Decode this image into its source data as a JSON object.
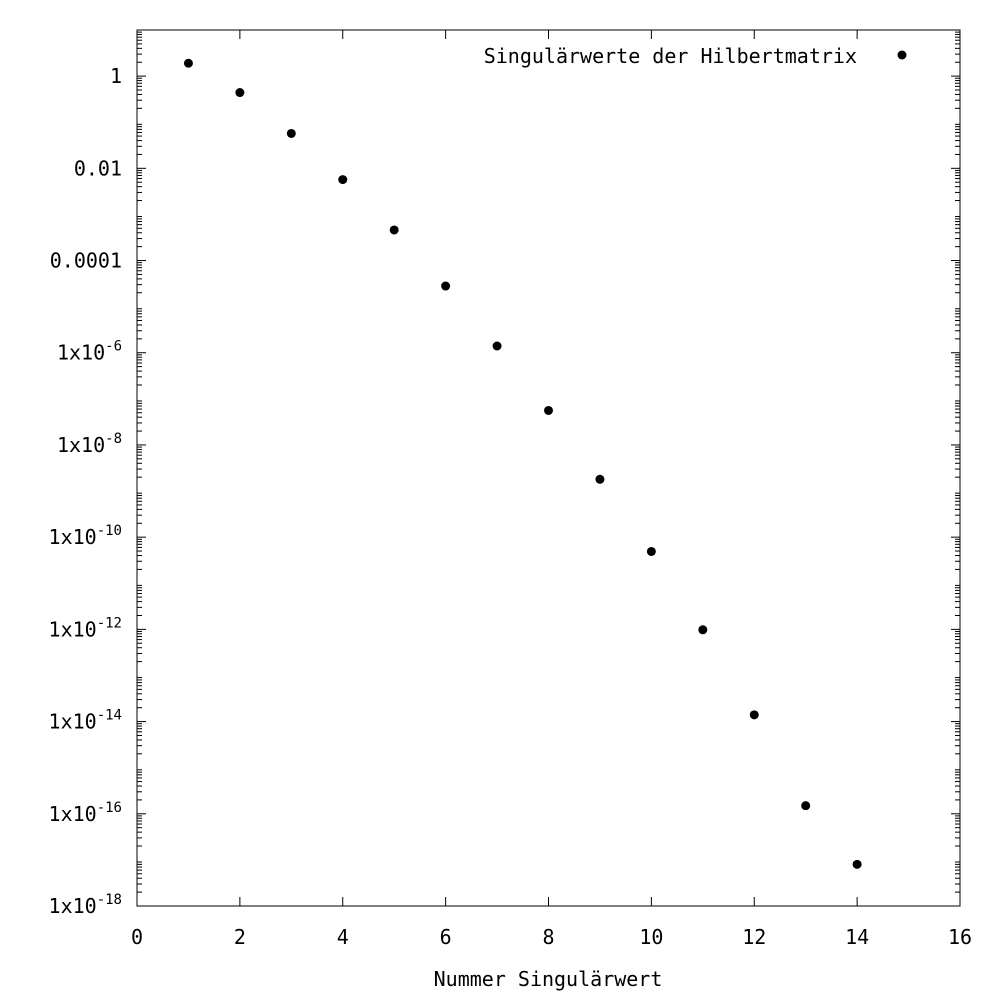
{
  "chart_data": {
    "type": "scatter",
    "title": "",
    "xlabel": "Nummer Singulärwert",
    "ylabel": "",
    "xlim": [
      0,
      16
    ],
    "ylim": [
      1e-18,
      10
    ],
    "y_scale": "log",
    "grid": false,
    "legend_position": "top-right",
    "marker_color": "#000000",
    "x_ticks": [
      {
        "value": 0,
        "label": "0"
      },
      {
        "value": 2,
        "label": "2"
      },
      {
        "value": 4,
        "label": "4"
      },
      {
        "value": 6,
        "label": "6"
      },
      {
        "value": 8,
        "label": "8"
      },
      {
        "value": 10,
        "label": "10"
      },
      {
        "value": 12,
        "label": "12"
      },
      {
        "value": 14,
        "label": "14"
      },
      {
        "value": 16,
        "label": "16"
      }
    ],
    "y_ticks": [
      {
        "value": 1,
        "mantissa": "1",
        "exponent": ""
      },
      {
        "value": 0.01,
        "mantissa": "0.01",
        "exponent": ""
      },
      {
        "value": 0.0001,
        "mantissa": "0.0001",
        "exponent": ""
      },
      {
        "value": 1e-06,
        "mantissa": "1x10",
        "exponent": "-6"
      },
      {
        "value": 1e-08,
        "mantissa": "1x10",
        "exponent": "-8"
      },
      {
        "value": 1e-10,
        "mantissa": "1x10",
        "exponent": "-10"
      },
      {
        "value": 1e-12,
        "mantissa": "1x10",
        "exponent": "-12"
      },
      {
        "value": 1e-14,
        "mantissa": "1x10",
        "exponent": "-14"
      },
      {
        "value": 1e-16,
        "mantissa": "1x10",
        "exponent": "-16"
      },
      {
        "value": 1e-18,
        "mantissa": "1x10",
        "exponent": "-18"
      }
    ],
    "series": [
      {
        "name": "Singulärwerte der Hilbertmatrix",
        "points": [
          {
            "x": 1,
            "y": 1.9
          },
          {
            "x": 2,
            "y": 0.44
          },
          {
            "x": 3,
            "y": 0.057
          },
          {
            "x": 4,
            "y": 0.0057
          },
          {
            "x": 5,
            "y": 0.00046
          },
          {
            "x": 6,
            "y": 2.8e-05
          },
          {
            "x": 7,
            "y": 1.4e-06
          },
          {
            "x": 8,
            "y": 5.6e-08
          },
          {
            "x": 9,
            "y": 1.8e-09
          },
          {
            "x": 10,
            "y": 4.9e-11
          },
          {
            "x": 11,
            "y": 9.8e-13
          },
          {
            "x": 12,
            "y": 1.4e-14
          },
          {
            "x": 13,
            "y": 1.5e-16
          },
          {
            "x": 14,
            "y": 8e-18
          }
        ]
      }
    ]
  }
}
